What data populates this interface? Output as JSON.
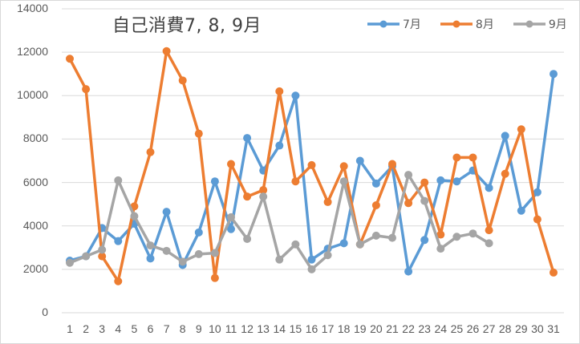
{
  "chart_data": {
    "type": "line",
    "title": "自己消費7, 8, 9月",
    "xlabel": "",
    "ylabel": "",
    "ylim": [
      0,
      14000
    ],
    "yticks": [
      0,
      2000,
      4000,
      6000,
      8000,
      10000,
      12000,
      14000
    ],
    "grid": true,
    "legend_position": "top-right",
    "x": [
      1,
      2,
      3,
      4,
      5,
      6,
      7,
      8,
      9,
      10,
      11,
      12,
      13,
      14,
      15,
      16,
      17,
      18,
      19,
      20,
      21,
      22,
      23,
      24,
      25,
      26,
      27,
      28,
      29,
      30,
      31
    ],
    "series": [
      {
        "name": "7月",
        "color": "#5B9BD5",
        "values": [
          2400,
          2600,
          3900,
          3300,
          4100,
          2500,
          4650,
          2200,
          3700,
          6050,
          3850,
          8050,
          6550,
          7700,
          10000,
          2450,
          2950,
          3200,
          7000,
          5950,
          6750,
          1900,
          3350,
          6100,
          6050,
          6550,
          5750,
          8150,
          4700,
          5550,
          11000
        ]
      },
      {
        "name": "8月",
        "color": "#ED7D31",
        "values": [
          11700,
          10300,
          2600,
          1450,
          4900,
          7400,
          12050,
          10700,
          8250,
          1600,
          6850,
          5350,
          5650,
          10200,
          6050,
          6800,
          5100,
          6750,
          3150,
          4950,
          6850,
          5050,
          6000,
          3600,
          7150,
          7150,
          3800,
          6400,
          8450,
          4300,
          1850
        ]
      },
      {
        "name": "9月",
        "color": "#A5A5A5",
        "values": [
          2300,
          2600,
          2900,
          6100,
          4450,
          3100,
          2850,
          2350,
          2700,
          2750,
          4400,
          3400,
          5350,
          2450,
          3150,
          2000,
          2650,
          6050,
          3150,
          3550,
          3450,
          6350,
          5150,
          2950,
          3500,
          3650,
          3200
        ]
      }
    ]
  },
  "legend": [
    {
      "label": "7月",
      "color": "#5B9BD5"
    },
    {
      "label": "8月",
      "color": "#ED7D31"
    },
    {
      "label": "9月",
      "color": "#A5A5A5"
    }
  ]
}
